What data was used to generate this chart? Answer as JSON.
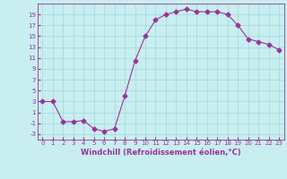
{
  "x": [
    0,
    1,
    2,
    3,
    4,
    5,
    6,
    7,
    8,
    9,
    10,
    11,
    12,
    13,
    14,
    15,
    16,
    17,
    18,
    19,
    20,
    21,
    22,
    23
  ],
  "y": [
    3,
    3,
    -0.7,
    -0.7,
    -0.5,
    -2,
    -2.5,
    -2,
    4,
    10.5,
    15,
    18,
    19,
    19.5,
    20,
    19.5,
    19.5,
    19.5,
    19,
    17,
    14.5,
    14,
    13.5,
    12.5
  ],
  "line_color": "#993399",
  "marker": "D",
  "markersize": 2.5,
  "bg_color": "#c8eef0",
  "grid_color": "#a0d8dc",
  "xlabel": "Windchill (Refroidissement éolien,°C)",
  "xlim": [
    -0.5,
    23.5
  ],
  "ylim": [
    -4,
    21
  ],
  "yticks": [
    -3,
    -1,
    1,
    3,
    5,
    7,
    9,
    11,
    13,
    15,
    17,
    19
  ],
  "xticks": [
    0,
    1,
    2,
    3,
    4,
    5,
    6,
    7,
    8,
    9,
    10,
    11,
    12,
    13,
    14,
    15,
    16,
    17,
    18,
    19,
    20,
    21,
    22,
    23
  ],
  "font_color": "#993399",
  "xlabel_fontsize": 6.0,
  "tick_fontsize": 5.0
}
